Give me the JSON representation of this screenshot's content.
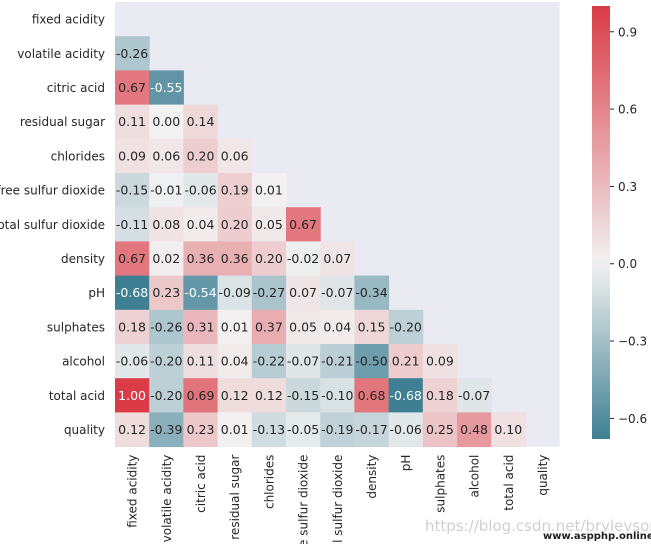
{
  "chart_data": {
    "type": "heatmap",
    "title": "",
    "xlabel": "",
    "ylabel": "",
    "mask": "upper-triangle",
    "labels": [
      "fixed acidity",
      "volatile acidity",
      "citric acid",
      "residual sugar",
      "chlorides",
      "free sulfur dioxide",
      "total sulfur dioxide",
      "density",
      "pH",
      "sulphates",
      "alcohol",
      "total acid",
      "quality"
    ],
    "rows": [
      {
        "label": "fixed acidity",
        "values": []
      },
      {
        "label": "volatile acidity",
        "values": [
          -0.26
        ]
      },
      {
        "label": "citric acid",
        "values": [
          0.67,
          -0.55
        ]
      },
      {
        "label": "residual sugar",
        "values": [
          0.11,
          0.0,
          0.14
        ]
      },
      {
        "label": "chlorides",
        "values": [
          0.09,
          0.06,
          0.2,
          0.06
        ]
      },
      {
        "label": "free sulfur dioxide",
        "values": [
          -0.15,
          -0.01,
          -0.06,
          0.19,
          0.01
        ]
      },
      {
        "label": "total sulfur dioxide",
        "values": [
          -0.11,
          0.08,
          0.04,
          0.2,
          0.05,
          0.67
        ]
      },
      {
        "label": "density",
        "values": [
          0.67,
          0.02,
          0.36,
          0.36,
          0.2,
          -0.02,
          0.07
        ]
      },
      {
        "label": "pH",
        "values": [
          -0.68,
          0.23,
          -0.54,
          -0.09,
          -0.27,
          0.07,
          -0.07,
          -0.34
        ]
      },
      {
        "label": "sulphates",
        "values": [
          0.18,
          -0.26,
          0.31,
          0.01,
          0.37,
          0.05,
          0.04,
          0.15,
          -0.2
        ]
      },
      {
        "label": "alcohol",
        "values": [
          -0.06,
          -0.2,
          0.11,
          0.04,
          -0.22,
          -0.07,
          -0.21,
          -0.5,
          0.21,
          0.09
        ]
      },
      {
        "label": "total acid",
        "values": [
          1.0,
          -0.2,
          0.69,
          0.12,
          0.12,
          -0.15,
          -0.1,
          0.68,
          -0.68,
          0.18,
          -0.07
        ]
      },
      {
        "label": "quality",
        "values": [
          0.12,
          -0.39,
          0.23,
          0.01,
          -0.13,
          -0.05,
          -0.19,
          -0.17,
          -0.06,
          0.25,
          0.48,
          0.1
        ]
      }
    ],
    "colorbar": {
      "range": [
        -0.68,
        1.0
      ],
      "ticks": [
        0.9,
        0.6,
        0.3,
        0.0,
        -0.3,
        -0.6
      ],
      "tick_labels": [
        "0.9",
        "0.6",
        "0.3",
        "0.0",
        "−0.3",
        "−0.6"
      ]
    },
    "colors": {
      "negative": "#3f7f93",
      "center": "#f2f2f2",
      "positive": "#da3b46",
      "mask_background": "#eaeaf2"
    }
  },
  "watermark": {
    "text": "https://blog.csdn.net/brylevson",
    "site": "www.aspphp.online"
  }
}
